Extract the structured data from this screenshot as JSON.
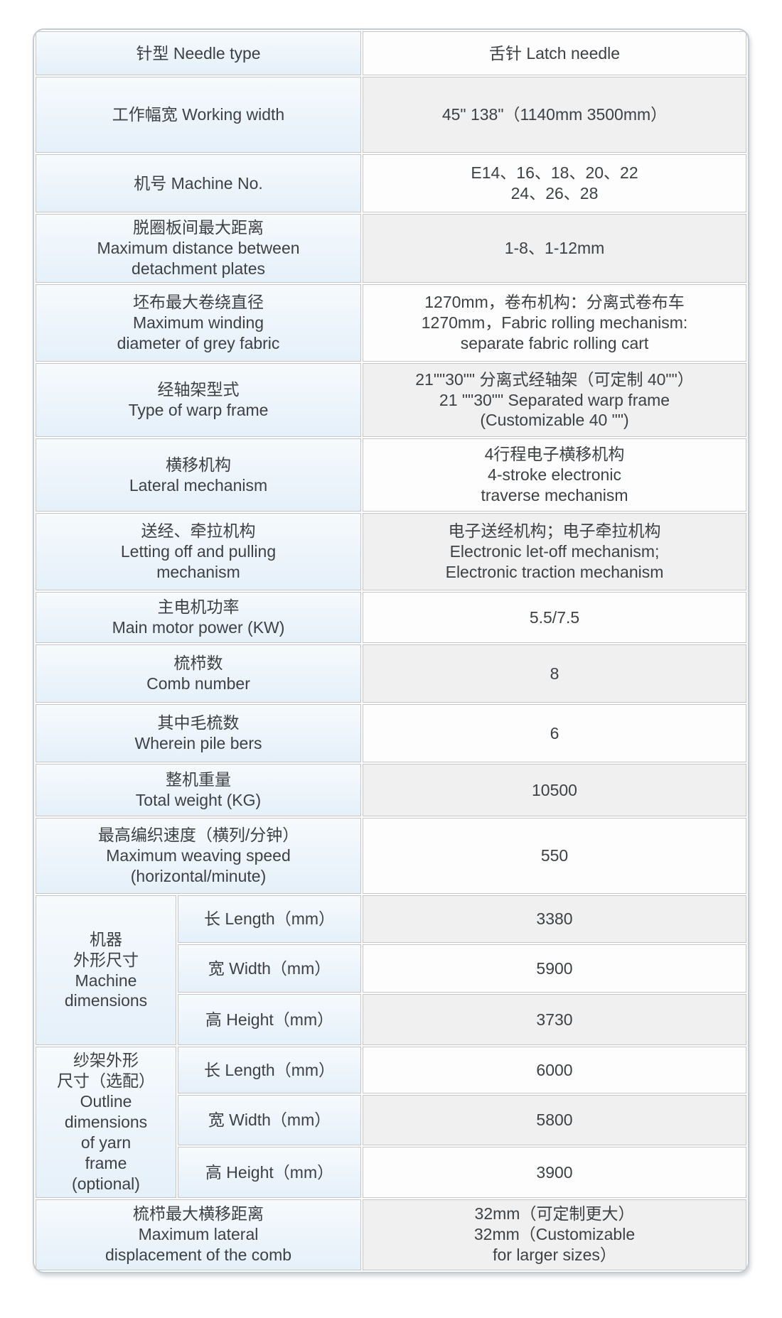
{
  "colors": {
    "label_bg_top": "#f6fafd",
    "label_bg_bottom": "#e5f0f9",
    "value_row": "#fdfdfd",
    "value_row_alt": "#f0f0f0",
    "grid_line": "#c6c6c6",
    "outer_border": "#c3ccd2",
    "text": "#3e4144"
  },
  "table": {
    "sections": [
      {
        "type": "row",
        "label": [
          "针型 Needle type"
        ],
        "value": [
          "舌针 Latch needle"
        ]
      },
      {
        "type": "row",
        "label": [
          "工作幅宽 Working width"
        ],
        "value": [
          "45\" 138\"（1140mm 3500mm）"
        ]
      },
      {
        "type": "row",
        "label": [
          "机号 Machine No."
        ],
        "value": [
          "E14、16、18、20、22",
          "24、26、28"
        ]
      },
      {
        "type": "row",
        "label": [
          "脱圈板间最大距离",
          "Maximum distance between",
          "detachment plates"
        ],
        "value": [
          "1-8、1-12mm"
        ]
      },
      {
        "type": "row",
        "label": [
          "坯布最大卷绕直径",
          "Maximum winding",
          "diameter of grey fabric"
        ],
        "value": [
          "1270mm，卷布机构：分离式卷布车",
          "1270mm，Fabric rolling mechanism:",
          "separate fabric rolling cart"
        ]
      },
      {
        "type": "row",
        "label": [
          "经轴架型式",
          "Type of warp frame"
        ],
        "value": [
          "21\"\"30\"\" 分离式经轴架（可定制 40\"\"）",
          "21 \"\"30\"\" Separated warp frame",
          "(Customizable 40 \"\")"
        ]
      },
      {
        "type": "row",
        "label": [
          "横移机构",
          "Lateral mechanism"
        ],
        "value": [
          "4行程电子横移机构",
          "4-stroke electronic",
          "traverse mechanism"
        ]
      },
      {
        "type": "row",
        "label": [
          "送经、牵拉机构",
          "Letting off and pulling",
          "mechanism"
        ],
        "value": [
          "电子送经机构；电子牵拉机构",
          "Electronic let-off mechanism;",
          "Electronic traction mechanism"
        ]
      },
      {
        "type": "row",
        "label": [
          "主电机功率",
          "Main motor power (KW)"
        ],
        "value": [
          "5.5/7.5"
        ]
      },
      {
        "type": "row",
        "label": [
          "梳栉数",
          "Comb number"
        ],
        "value": [
          "8"
        ]
      },
      {
        "type": "row",
        "label": [
          "其中毛梳数",
          "Wherein pile bers"
        ],
        "value": [
          "6"
        ]
      },
      {
        "type": "row",
        "label": [
          "整机重量",
          "Total weight (KG)"
        ],
        "value": [
          "10500"
        ]
      },
      {
        "type": "row",
        "label": [
          "最高编织速度（横列/分钟）",
          "Maximum weaving speed",
          "(horizontal/minute)"
        ],
        "value": [
          "550"
        ]
      },
      {
        "type": "group",
        "group_label": [
          "机器",
          "外形尺寸",
          "Machine",
          "dimensions"
        ],
        "items": [
          {
            "sub": "长 Length（mm）",
            "value": "3380"
          },
          {
            "sub": "宽 Width（mm）",
            "value": "5900"
          },
          {
            "sub": "高 Height（mm）",
            "value": "3730"
          }
        ]
      },
      {
        "type": "group",
        "group_label": [
          "纱架外形",
          "尺寸（选配）",
          "Outline",
          "dimensions",
          "of yarn",
          "frame",
          "(optional)"
        ],
        "items": [
          {
            "sub": "长 Length（mm）",
            "value": "6000"
          },
          {
            "sub": "宽 Width（mm）",
            "value": "5800"
          },
          {
            "sub": "高 Height（mm）",
            "value": "3900"
          }
        ]
      },
      {
        "type": "row",
        "label": [
          "梳栉最大横移距离",
          "Maximum lateral",
          "displacement of the comb"
        ],
        "value": [
          "32mm（可定制更大）",
          "32mm（Customizable",
          "for larger sizes）"
        ]
      }
    ]
  }
}
